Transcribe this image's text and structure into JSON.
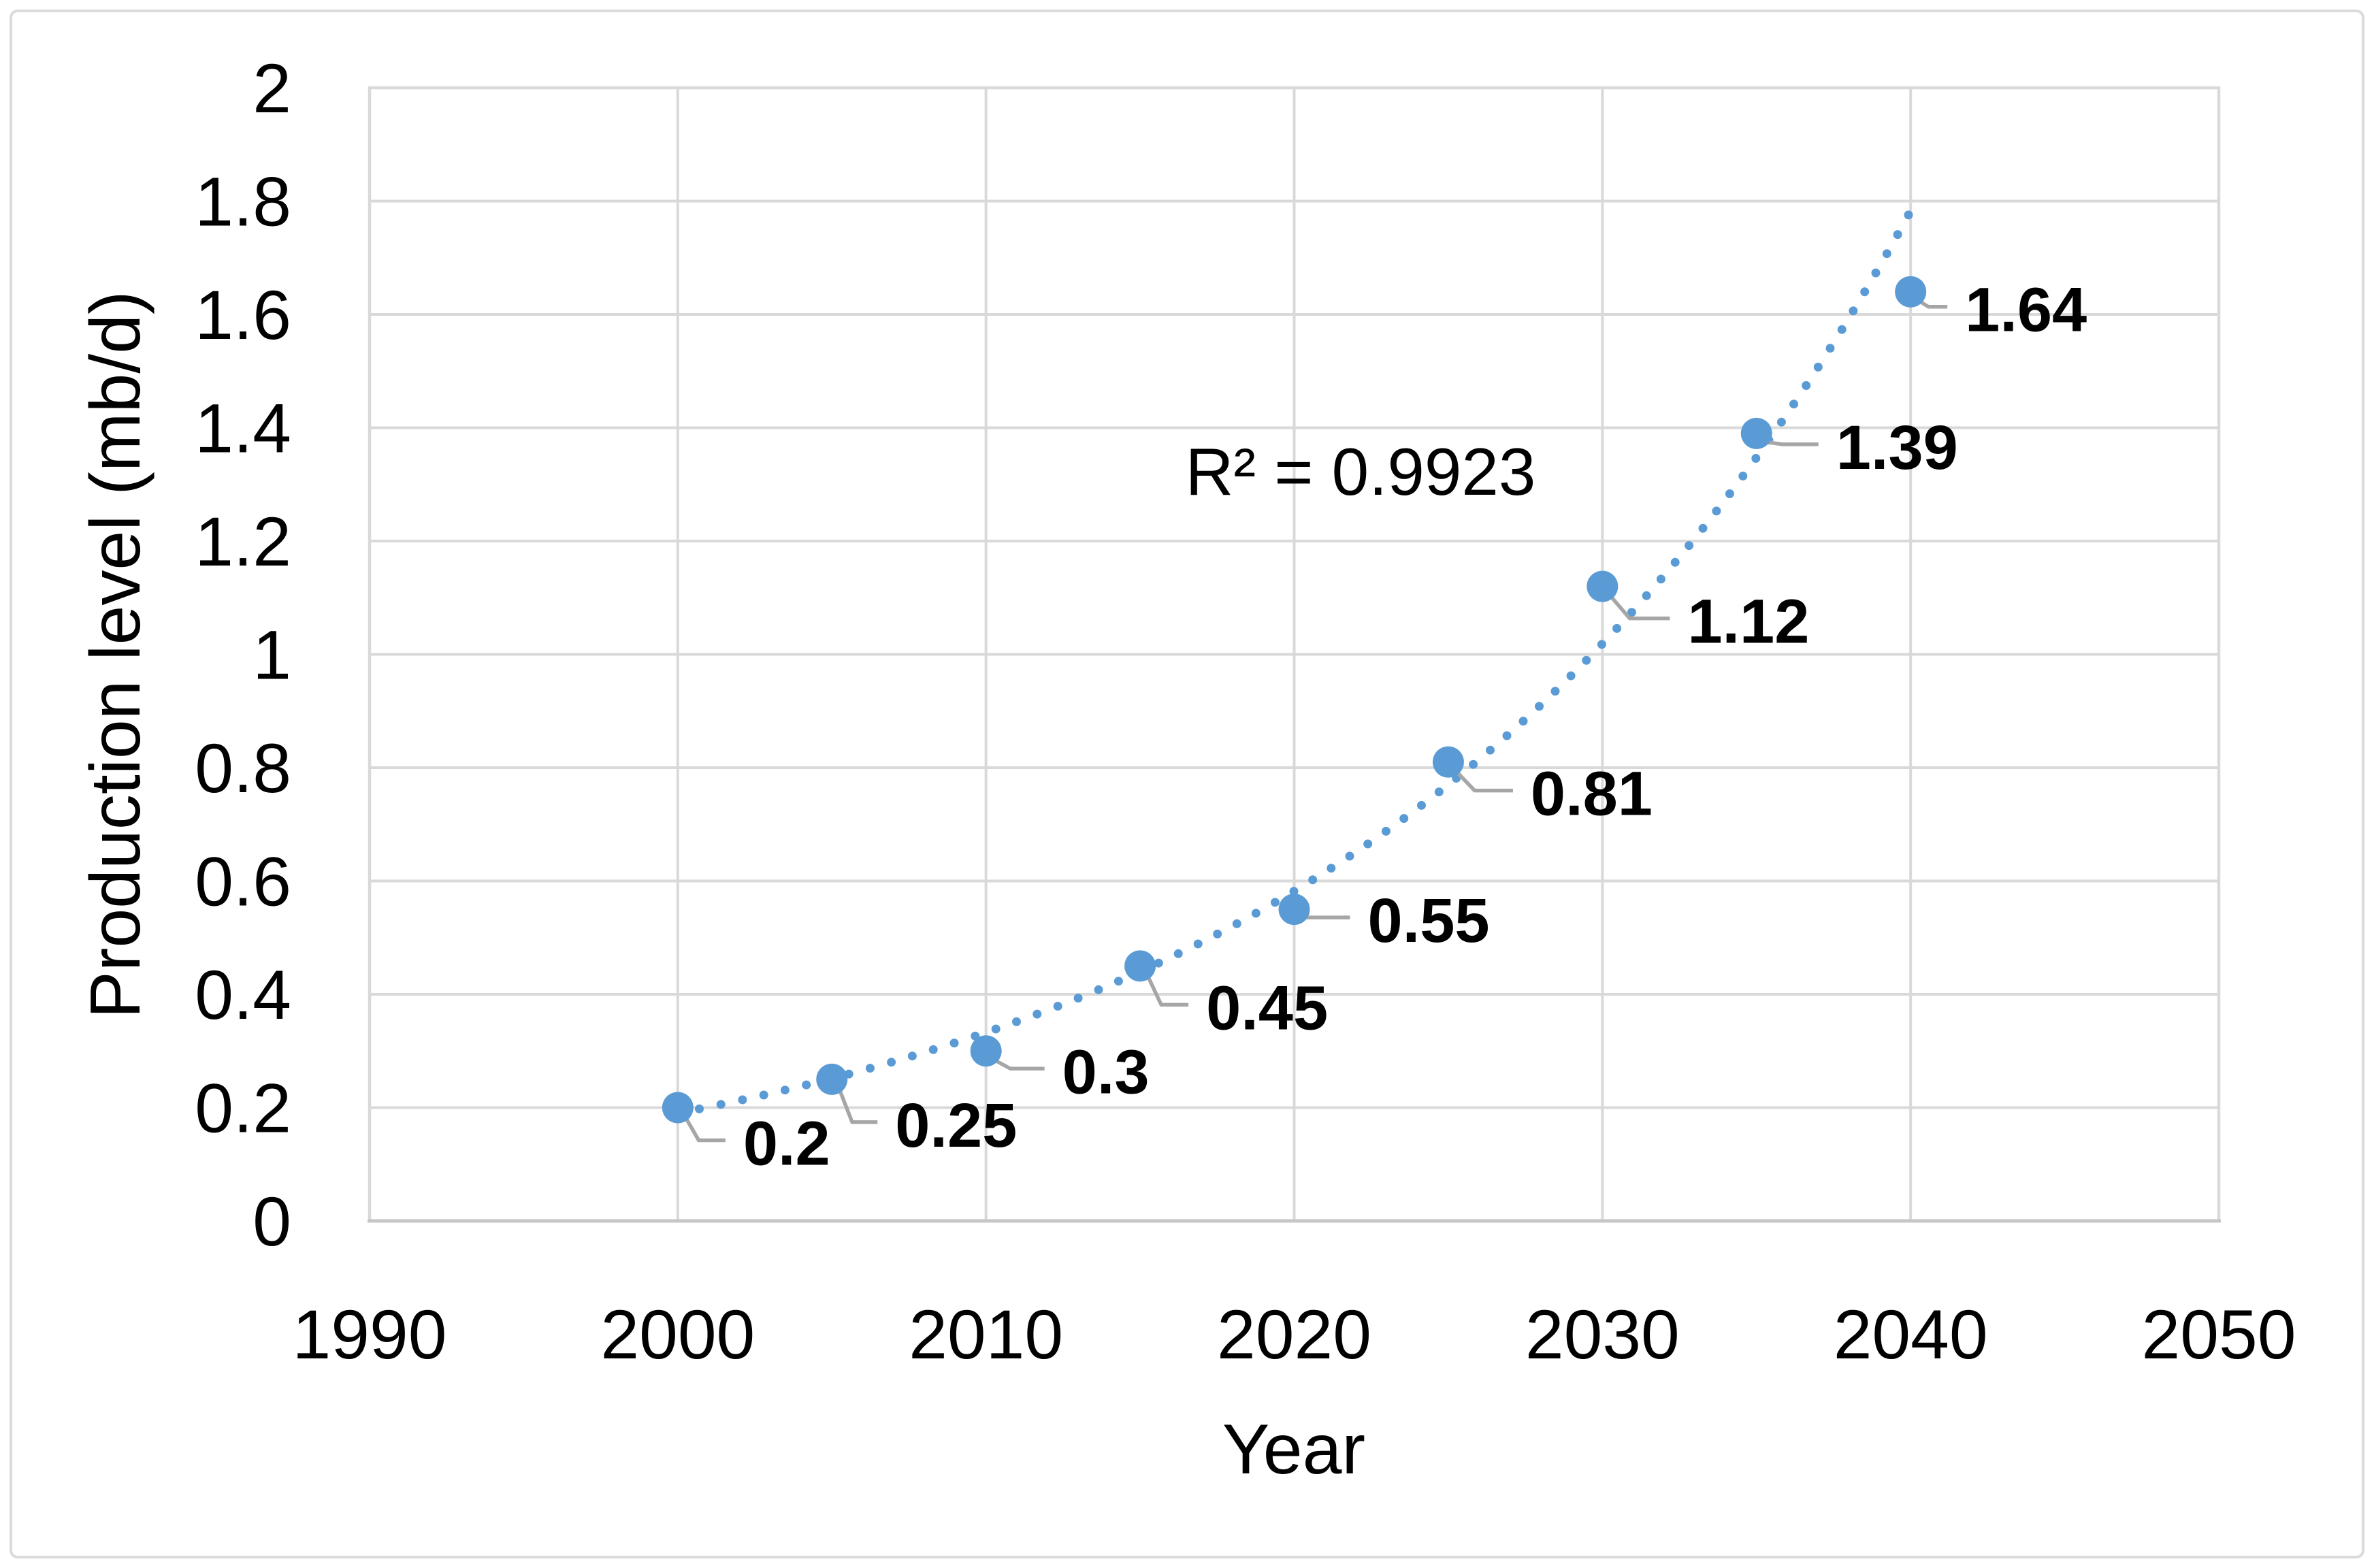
{
  "figure": {
    "background": "#FFFFFF",
    "frame_color": "#DBDBDB"
  },
  "colors": {
    "marker": "#5B9BD5",
    "trendline": "#5B9BD5",
    "gridline": "#D9D9D9",
    "plot_border": "#D9D9D9",
    "axis_line": "#C6C6C6",
    "leader_line": "#A6A6A6",
    "text": "#000000"
  },
  "chart_data": {
    "type": "scatter",
    "title": "",
    "xlabel": "Year",
    "ylabel": "Production level (mb/d)",
    "xlim": [
      1990,
      2050
    ],
    "ylim": [
      0,
      2
    ],
    "grid": true,
    "legend": "none",
    "x_ticks": {
      "values": [
        1990,
        2000,
        2010,
        2020,
        2030,
        2040,
        2050
      ],
      "labels": [
        "1990",
        "2000",
        "2010",
        "2020",
        "2030",
        "2040",
        "2050"
      ]
    },
    "y_ticks": {
      "values": [
        0,
        0.2,
        0.4,
        0.6,
        0.8,
        1,
        1.2,
        1.4,
        1.6,
        1.8,
        2
      ],
      "labels": [
        "0",
        "0.2",
        "0.4",
        "0.6",
        "0.8",
        "1",
        "1.2",
        "1.4",
        "1.6",
        "1.8",
        "2"
      ]
    },
    "series": [
      {
        "name": "Production level",
        "points": [
          {
            "year": 2000,
            "value": 0.2,
            "label": "0.2",
            "label_dx": 96,
            "label_dy": 52
          },
          {
            "year": 2005,
            "value": 0.25,
            "label": "0.25",
            "label_dx": 93,
            "label_dy": 67
          },
          {
            "year": 2010,
            "value": 0.3,
            "label": "0.3",
            "label_dx": 112,
            "label_dy": 30
          },
          {
            "year": 2015,
            "value": 0.45,
            "label": "0.45",
            "label_dx": 97,
            "label_dy": 61
          },
          {
            "year": 2020,
            "value": 0.55,
            "label": "0.55",
            "label_dx": 108,
            "label_dy": 16
          },
          {
            "year": 2025,
            "value": 0.81,
            "label": "0.81",
            "label_dx": 121,
            "label_dy": 46
          },
          {
            "year": 2030,
            "value": 1.12,
            "label": "1.12",
            "label_dx": 125,
            "label_dy": 51
          },
          {
            "year": 2035,
            "value": 1.39,
            "label": "1.39",
            "label_dx": 117,
            "label_dy": 20
          },
          {
            "year": 2040,
            "value": 1.64,
            "label": "1.64",
            "label_dx": 80,
            "label_dy": 26
          }
        ]
      }
    ],
    "trendline": {
      "fit": "exponential",
      "style": "round-dot",
      "x_start": 2000,
      "x_end": 2040,
      "ln_intercept_at_2020": -0.54105,
      "ln_slope_per_year": 0.055952,
      "r2_label": "R² = 0.9923",
      "r2_label_x": 2022.1,
      "r2_label_y": 1.322
    }
  }
}
